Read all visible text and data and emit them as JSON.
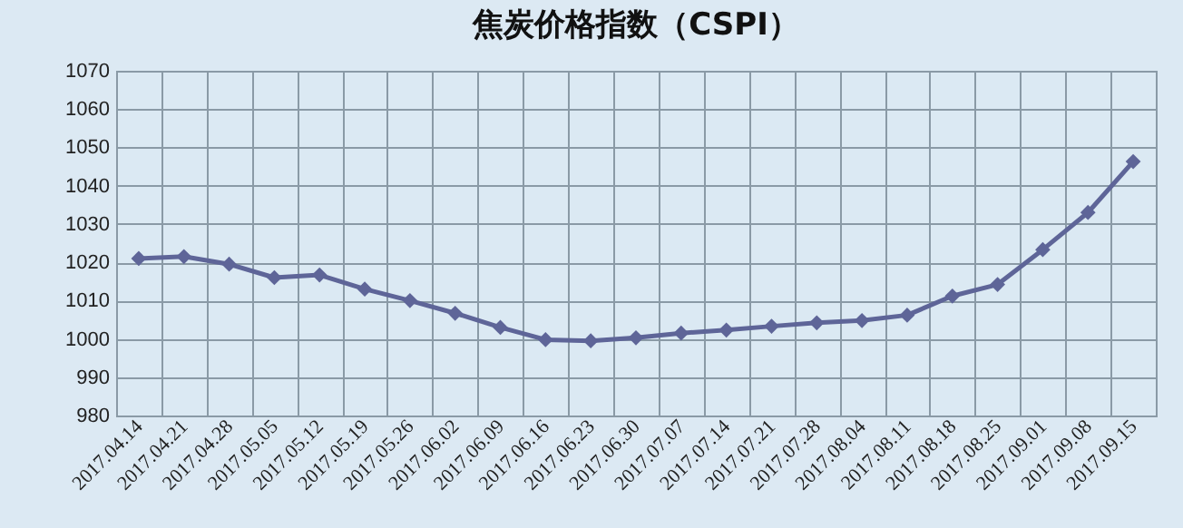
{
  "chart_data": {
    "type": "line",
    "title": "焦炭价格指数（CSPI）",
    "categories": [
      "2017.04.14",
      "2017.04.21",
      "2017.04.28",
      "2017.05.05",
      "2017.05.12",
      "2017.05.19",
      "2017.05.26",
      "2017.06.02",
      "2017.06.09",
      "2017.06.16",
      "2017.06.23",
      "2017.06.30",
      "2017.07.07",
      "2017.07.14",
      "2017.07.21",
      "2017.07.28",
      "2017.08.04",
      "2017.08.11",
      "2017.08.18",
      "2017.08.25",
      "2017.09.01",
      "2017.09.08",
      "2017.09.15"
    ],
    "series": [
      {
        "color": "#5e6598",
        "values": [
          1021,
          1021.5,
          1019.5,
          1016,
          1016.7,
          1013,
          1010,
          1006.7,
          1003,
          999.8,
          999.5,
          1000.3,
          1001.5,
          1002.3,
          1003.3,
          1004.2,
          1004.8,
          1006.2,
          1011.2,
          1014.2,
          1023.3,
          1033,
          1046.3
        ]
      }
    ],
    "ylim": [
      980,
      1070
    ],
    "yticks": [
      980,
      990,
      1000,
      1010,
      1020,
      1030,
      1040,
      1050,
      1060,
      1070
    ],
    "grid": true,
    "marker": "diamond",
    "line_style": "solid"
  }
}
